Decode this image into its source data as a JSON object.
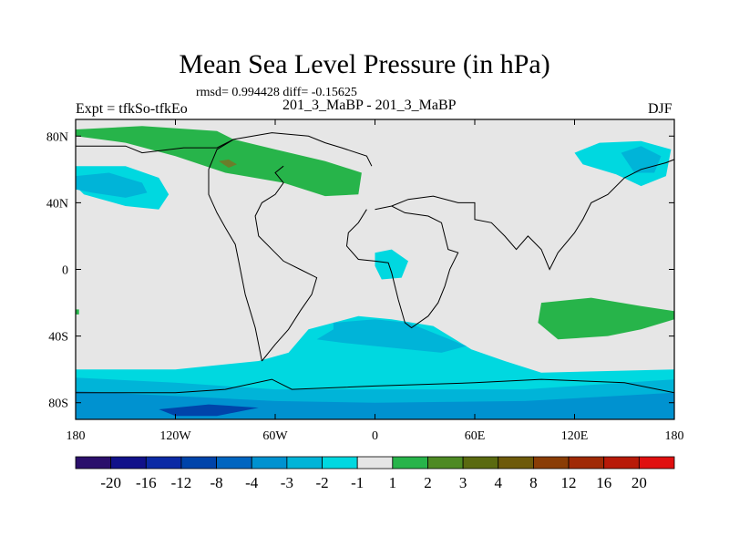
{
  "title": "Mean Sea Level Pressure (in hPa)",
  "stats_text": "rmsd= 0.994428 diff= -0.15625",
  "left_label": "Expt = tfkSo-tfkEo",
  "center_label": "201_3_MaBP - 201_3_MaBP",
  "right_label": "DJF",
  "map": {
    "projection": "cylindrical equidistant",
    "lon_range": [
      -180,
      180
    ],
    "lat_range": [
      -90,
      90
    ],
    "x_ticks": [
      {
        "lon": -180,
        "label": "180"
      },
      {
        "lon": -120,
        "label": "120W"
      },
      {
        "lon": -60,
        "label": "60W"
      },
      {
        "lon": 0,
        "label": "0"
      },
      {
        "lon": 60,
        "label": "60E"
      },
      {
        "lon": 120,
        "label": "120E"
      },
      {
        "lon": 180,
        "label": "180"
      }
    ],
    "y_ticks": [
      {
        "lat": 80,
        "label": "80N"
      },
      {
        "lat": 40,
        "label": "40N"
      },
      {
        "lat": 0,
        "label": "0"
      },
      {
        "lat": -40,
        "label": "40S"
      },
      {
        "lat": -80,
        "label": "80S"
      }
    ],
    "background_color": "#e6e6e6",
    "outline_color": "#000000",
    "regions": [
      {
        "name": "north-atlantic-positive",
        "value": 2,
        "color": "#27b44a",
        "points": [
          [
            -180,
            84
          ],
          [
            -140,
            86
          ],
          [
            -95,
            83
          ],
          [
            -85,
            78
          ],
          [
            -60,
            72
          ],
          [
            -30,
            65
          ],
          [
            -8,
            58
          ],
          [
            -10,
            45
          ],
          [
            -30,
            44
          ],
          [
            -55,
            52
          ],
          [
            -90,
            58
          ],
          [
            -120,
            68
          ],
          [
            -150,
            76
          ],
          [
            -180,
            80
          ]
        ]
      },
      {
        "name": "greenland-peak",
        "value": 3,
        "color": "#6b7d2a",
        "points": [
          [
            -94,
            65
          ],
          [
            -88,
            66
          ],
          [
            -83,
            63
          ],
          [
            -88,
            61
          ]
        ]
      },
      {
        "name": "north-pacific-low",
        "value": -2,
        "color": "#00d8e0",
        "points": [
          [
            -180,
            62
          ],
          [
            -150,
            62
          ],
          [
            -130,
            55
          ],
          [
            -124,
            45
          ],
          [
            -130,
            36
          ],
          [
            -150,
            38
          ],
          [
            -175,
            45
          ],
          [
            -180,
            50
          ]
        ]
      },
      {
        "name": "north-pacific-core",
        "value": -3,
        "color": "#00b4d8",
        "points": [
          [
            -180,
            56
          ],
          [
            -160,
            58
          ],
          [
            -140,
            52
          ],
          [
            -137,
            46
          ],
          [
            -150,
            43
          ],
          [
            -170,
            46
          ],
          [
            -180,
            48
          ]
        ]
      },
      {
        "name": "siberia-low",
        "value": -2,
        "color": "#00d8e0",
        "points": [
          [
            120,
            70
          ],
          [
            135,
            76
          ],
          [
            160,
            77
          ],
          [
            178,
            72
          ],
          [
            175,
            56
          ],
          [
            160,
            50
          ],
          [
            145,
            57
          ],
          [
            125,
            63
          ]
        ]
      },
      {
        "name": "siberia-core",
        "value": -3,
        "color": "#00b4d8",
        "points": [
          [
            148,
            70
          ],
          [
            160,
            74
          ],
          [
            172,
            68
          ],
          [
            168,
            58
          ],
          [
            156,
            58
          ]
        ]
      },
      {
        "name": "mediterranean-low",
        "value": -2,
        "color": "#00d8e0",
        "points": [
          [
            0,
            10
          ],
          [
            10,
            12
          ],
          [
            20,
            5
          ],
          [
            16,
            -5
          ],
          [
            4,
            -6
          ],
          [
            0,
            2
          ]
        ]
      },
      {
        "name": "south-atlantic-low",
        "value": -2,
        "color": "#00d8e0",
        "points": [
          [
            -52,
            -50
          ],
          [
            -40,
            -36
          ],
          [
            -10,
            -28
          ],
          [
            10,
            -30
          ],
          [
            35,
            -34
          ],
          [
            58,
            -48
          ],
          [
            78,
            -55
          ],
          [
            100,
            -62
          ],
          [
            180,
            -60
          ],
          [
            180,
            -90
          ],
          [
            -180,
            -90
          ],
          [
            -180,
            -60
          ],
          [
            -120,
            -60
          ],
          [
            -70,
            -55
          ]
        ]
      },
      {
        "name": "south-atlantic-core",
        "value": -3,
        "color": "#00b4d8",
        "points": [
          [
            -25,
            -32
          ],
          [
            0,
            -30
          ],
          [
            20,
            -32
          ],
          [
            55,
            -46
          ],
          [
            40,
            -50
          ],
          [
            0,
            -46
          ],
          [
            -20,
            -44
          ],
          [
            -35,
            -42
          ],
          [
            -25,
            -36
          ]
        ]
      },
      {
        "name": "southern-ocean-band",
        "value": -3,
        "color": "#00b4d8",
        "points": [
          [
            -180,
            -65
          ],
          [
            -120,
            -68
          ],
          [
            -60,
            -72
          ],
          [
            0,
            -72
          ],
          [
            90,
            -72
          ],
          [
            180,
            -66
          ],
          [
            180,
            -90
          ],
          [
            -180,
            -90
          ]
        ]
      },
      {
        "name": "southern-ocean-strong",
        "value": -4,
        "color": "#0092d0",
        "points": [
          [
            -180,
            -73
          ],
          [
            -120,
            -76
          ],
          [
            -60,
            -79
          ],
          [
            0,
            -80
          ],
          [
            90,
            -79
          ],
          [
            180,
            -74
          ],
          [
            180,
            -90
          ],
          [
            -180,
            -90
          ]
        ]
      },
      {
        "name": "southern-ocean-core",
        "value": -8,
        "color": "#0044aa",
        "points": [
          [
            -130,
            -84
          ],
          [
            -100,
            -81
          ],
          [
            -70,
            -83
          ],
          [
            -95,
            -88
          ],
          [
            -120,
            -88
          ]
        ]
      },
      {
        "name": "indian-ocean-positive",
        "value": 2,
        "color": "#27b44a",
        "points": [
          [
            100,
            -20
          ],
          [
            130,
            -17
          ],
          [
            160,
            -22
          ],
          [
            180,
            -25
          ],
          [
            180,
            -30
          ],
          [
            160,
            -36
          ],
          [
            140,
            -40
          ],
          [
            110,
            -42
          ],
          [
            98,
            -32
          ]
        ]
      },
      {
        "name": "antimeridian-speck",
        "value": 2,
        "color": "#27b44a",
        "points": [
          [
            -180,
            -24
          ],
          [
            -178,
            -24
          ],
          [
            -178,
            -27
          ],
          [
            -180,
            -27
          ]
        ]
      }
    ],
    "coastlines": [
      {
        "name": "north-america-arctic",
        "points": [
          [
            -180,
            74
          ],
          [
            -150,
            74
          ],
          [
            -140,
            70
          ],
          [
            -115,
            73
          ],
          [
            -95,
            73
          ],
          [
            -85,
            78
          ],
          [
            -62,
            82
          ],
          [
            -40,
            80
          ],
          [
            -30,
            76
          ],
          [
            -20,
            73
          ],
          [
            -5,
            68
          ],
          [
            -2,
            62
          ]
        ]
      },
      {
        "name": "americas-west",
        "points": [
          [
            -85,
            78
          ],
          [
            -95,
            72
          ],
          [
            -100,
            60
          ],
          [
            -100,
            45
          ],
          [
            -95,
            34
          ],
          [
            -90,
            25
          ],
          [
            -84,
            15
          ],
          [
            -82,
            5
          ],
          [
            -80,
            -5
          ],
          [
            -78,
            -15
          ],
          [
            -75,
            -25
          ],
          [
            -72,
            -35
          ],
          [
            -70,
            -45
          ],
          [
            -68,
            -55
          ]
        ]
      },
      {
        "name": "americas-east",
        "points": [
          [
            -68,
            -55
          ],
          [
            -60,
            -45
          ],
          [
            -52,
            -36
          ],
          [
            -45,
            -25
          ],
          [
            -38,
            -15
          ],
          [
            -35,
            -5
          ],
          [
            -45,
            0
          ],
          [
            -55,
            5
          ],
          [
            -60,
            10
          ],
          [
            -70,
            20
          ],
          [
            -72,
            32
          ],
          [
            -68,
            40
          ],
          [
            -60,
            45
          ],
          [
            -55,
            52
          ],
          [
            -60,
            58
          ],
          [
            -55,
            62
          ]
        ]
      },
      {
        "name": "eurasia-africa",
        "points": [
          [
            0,
            36
          ],
          [
            10,
            38
          ],
          [
            18,
            34
          ],
          [
            32,
            32
          ],
          [
            40,
            28
          ],
          [
            44,
            12
          ],
          [
            50,
            10
          ],
          [
            45,
            0
          ],
          [
            42,
            -10
          ],
          [
            38,
            -20
          ],
          [
            32,
            -28
          ],
          [
            22,
            -35
          ],
          [
            18,
            -32
          ],
          [
            14,
            -18
          ],
          [
            10,
            -2
          ],
          [
            8,
            4
          ],
          [
            0,
            5
          ],
          [
            -10,
            6
          ],
          [
            -17,
            14
          ],
          [
            -16,
            22
          ],
          [
            -10,
            28
          ],
          [
            -5,
            36
          ]
        ]
      },
      {
        "name": "eurasia-north",
        "points": [
          [
            10,
            38
          ],
          [
            20,
            42
          ],
          [
            35,
            44
          ],
          [
            50,
            40
          ],
          [
            60,
            40
          ],
          [
            60,
            30
          ],
          [
            70,
            28
          ],
          [
            78,
            20
          ],
          [
            85,
            12
          ],
          [
            92,
            20
          ],
          [
            100,
            12
          ],
          [
            105,
            0
          ],
          [
            110,
            10
          ],
          [
            120,
            22
          ],
          [
            125,
            30
          ],
          [
            130,
            40
          ],
          [
            140,
            45
          ],
          [
            150,
            55
          ],
          [
            160,
            60
          ],
          [
            175,
            64
          ],
          [
            180,
            66
          ]
        ]
      },
      {
        "name": "antarctica",
        "points": [
          [
            -180,
            -74
          ],
          [
            -120,
            -74
          ],
          [
            -90,
            -72
          ],
          [
            -62,
            -66
          ],
          [
            -50,
            -72
          ],
          [
            0,
            -70
          ],
          [
            60,
            -68
          ],
          [
            100,
            -66
          ],
          [
            150,
            -68
          ],
          [
            180,
            -74
          ]
        ]
      }
    ]
  },
  "colorbar": {
    "boxes": [
      {
        "color": "#2b0f6b"
      },
      {
        "color": "#11118a"
      },
      {
        "color": "#0b2aa5"
      },
      {
        "color": "#0044aa"
      },
      {
        "color": "#0065c0"
      },
      {
        "color": "#0092d0"
      },
      {
        "color": "#00b4d8"
      },
      {
        "color": "#00d8e0"
      },
      {
        "color": "#e6e6e6"
      },
      {
        "color": "#27b44a"
      },
      {
        "color": "#4e8a23"
      },
      {
        "color": "#5a6a10"
      },
      {
        "color": "#6e5a0a"
      },
      {
        "color": "#8a3d05"
      },
      {
        "color": "#a02a05"
      },
      {
        "color": "#b81a08"
      },
      {
        "color": "#e01010"
      }
    ],
    "labels": [
      "-20",
      "-16",
      "-12",
      "-8",
      "-4",
      "-3",
      "-2",
      "-1",
      "1",
      "2",
      "3",
      "4",
      "8",
      "12",
      "16",
      "20"
    ]
  }
}
